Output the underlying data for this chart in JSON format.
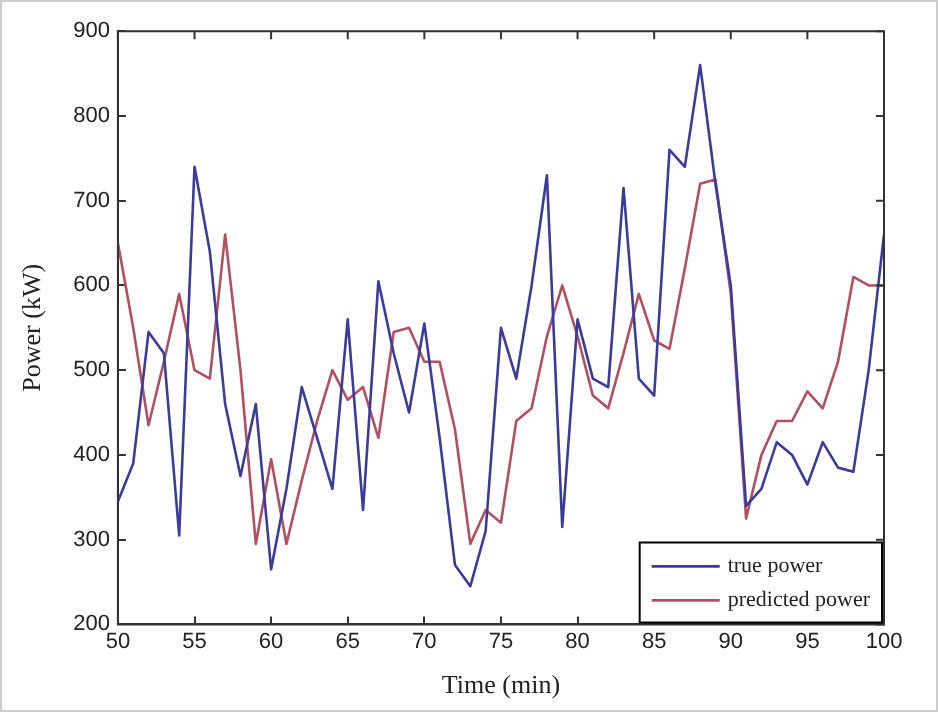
{
  "chart_data": {
    "type": "line",
    "xlabel": "Time (min)",
    "ylabel": "Power (kW)",
    "x": [
      50,
      51,
      52,
      53,
      54,
      55,
      56,
      57,
      58,
      59,
      60,
      61,
      62,
      63,
      64,
      65,
      66,
      67,
      68,
      69,
      70,
      71,
      72,
      73,
      74,
      75,
      76,
      77,
      78,
      79,
      80,
      81,
      82,
      83,
      84,
      85,
      86,
      87,
      88,
      89,
      90,
      91,
      92,
      93,
      94,
      95,
      96,
      97,
      98,
      99,
      100
    ],
    "series": [
      {
        "name": "true power",
        "color": "#3b3b9c",
        "values": [
          345,
          390,
          545,
          520,
          305,
          740,
          640,
          460,
          375,
          460,
          265,
          360,
          480,
          420,
          360,
          560,
          335,
          605,
          520,
          450,
          555,
          420,
          270,
          245,
          310,
          550,
          490,
          600,
          730,
          315,
          560,
          490,
          480,
          715,
          490,
          470,
          760,
          740,
          860,
          720,
          600,
          340,
          360,
          415,
          400,
          365,
          415,
          385,
          380,
          500,
          660
        ]
      },
      {
        "name": "predicted power",
        "color": "#b05060",
        "values": [
          650,
          550,
          435,
          510,
          590,
          500,
          490,
          660,
          500,
          295,
          395,
          295,
          370,
          440,
          500,
          465,
          480,
          420,
          545,
          550,
          510,
          510,
          430,
          295,
          335,
          320,
          440,
          455,
          540,
          600,
          540,
          470,
          455,
          520,
          590,
          535,
          525,
          620,
          720,
          725,
          590,
          325,
          400,
          440,
          440,
          475,
          455,
          510,
          610,
          600,
          600
        ]
      }
    ],
    "xlim": [
      50,
      100
    ],
    "xticks": [
      50,
      55,
      60,
      65,
      70,
      75,
      80,
      85,
      90,
      95,
      100
    ],
    "ylim": [
      200,
      900
    ],
    "yticks": [
      200,
      300,
      400,
      500,
      600,
      700,
      800,
      900
    ],
    "grid": false,
    "legend": "bottom right",
    "marker": "none",
    "line_style": "solid"
  }
}
